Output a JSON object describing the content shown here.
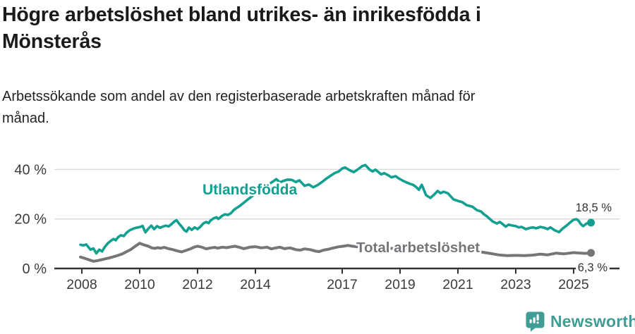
{
  "header": {
    "title_line1": "Högre arbetslöshet bland utrikes- än inrikesfödda i",
    "title_line2": "Mönsterås",
    "subtitle_line1": "Arbetssökande som andel av den registerbaserade arbetskraften månad för",
    "subtitle_line2": "månad."
  },
  "chart_data": {
    "type": "line",
    "title": "Högre arbetslöshet bland utrikes- än inrikesfödda i Mönsterås",
    "subtitle": "Arbetssökande som andel av den registerbaserade arbetskraften månad för månad.",
    "xlabel": "",
    "ylabel": "",
    "x_unit": "decimal year (monthly data)",
    "xlim": [
      2007.9,
      2026.5
    ],
    "ylim": [
      0,
      44
    ],
    "grid": "horizontal",
    "x_ticks": [
      2008,
      2010,
      2012,
      2014,
      2017,
      2019,
      2021,
      2023,
      2025
    ],
    "y_ticks": [
      {
        "value": 0,
        "label": "0 %"
      },
      {
        "value": 20,
        "label": "20 %"
      },
      {
        "value": 40,
        "label": "40 %"
      }
    ],
    "series": [
      {
        "name": "Total arbetslöshet",
        "color": "#76757A",
        "end_label": "6,3 %",
        "end_value": 6.3,
        "points": [
          [
            2007.95,
            4.6
          ],
          [
            2008.1,
            4.1
          ],
          [
            2008.25,
            3.5
          ],
          [
            2008.4,
            2.9
          ],
          [
            2008.55,
            3.2
          ],
          [
            2008.7,
            3.6
          ],
          [
            2008.85,
            4.0
          ],
          [
            2009.0,
            4.4
          ],
          [
            2009.2,
            5.1
          ],
          [
            2009.4,
            5.9
          ],
          [
            2009.55,
            6.8
          ],
          [
            2009.7,
            7.7
          ],
          [
            2009.85,
            9.0
          ],
          [
            2010.0,
            10.2
          ],
          [
            2010.15,
            9.5
          ],
          [
            2010.3,
            9.0
          ],
          [
            2010.42,
            8.3
          ],
          [
            2010.52,
            8.1
          ],
          [
            2010.62,
            8.4
          ],
          [
            2010.72,
            8.2
          ],
          [
            2010.85,
            8.5
          ],
          [
            2011.0,
            8.0
          ],
          [
            2011.15,
            7.6
          ],
          [
            2011.3,
            7.1
          ],
          [
            2011.45,
            6.7
          ],
          [
            2011.6,
            7.3
          ],
          [
            2011.75,
            7.9
          ],
          [
            2011.9,
            8.7
          ],
          [
            2012.0,
            9.0
          ],
          [
            2012.15,
            8.6
          ],
          [
            2012.3,
            7.9
          ],
          [
            2012.45,
            8.3
          ],
          [
            2012.6,
            8.5
          ],
          [
            2012.7,
            8.2
          ],
          [
            2012.85,
            8.6
          ],
          [
            2013.0,
            8.4
          ],
          [
            2013.15,
            8.7
          ],
          [
            2013.3,
            9.0
          ],
          [
            2013.45,
            8.5
          ],
          [
            2013.6,
            8.0
          ],
          [
            2013.8,
            8.6
          ],
          [
            2014.0,
            8.8
          ],
          [
            2014.2,
            8.3
          ],
          [
            2014.4,
            8.6
          ],
          [
            2014.55,
            7.9
          ],
          [
            2014.7,
            8.3
          ],
          [
            2014.85,
            8.6
          ],
          [
            2015.0,
            8.0
          ],
          [
            2015.2,
            8.3
          ],
          [
            2015.4,
            7.6
          ],
          [
            2015.55,
            7.4
          ],
          [
            2015.7,
            7.9
          ],
          [
            2015.9,
            7.6
          ],
          [
            2016.05,
            7.1
          ],
          [
            2016.2,
            6.8
          ],
          [
            2016.35,
            7.4
          ],
          [
            2016.5,
            7.7
          ],
          [
            2016.7,
            8.3
          ],
          [
            2016.9,
            8.8
          ],
          [
            2017.05,
            9.0
          ],
          [
            2017.2,
            9.3
          ],
          [
            2017.35,
            9.0
          ],
          [
            2017.5,
            8.8
          ],
          [
            2018.0,
            8.6
          ],
          [
            2018.5,
            8.2
          ],
          [
            2019.0,
            8.0
          ],
          [
            2019.5,
            7.8
          ],
          [
            2020.0,
            8.2
          ],
          [
            2020.4,
            8.8
          ],
          [
            2021.0,
            8.0
          ],
          [
            2021.5,
            7.2
          ],
          [
            2022.0,
            6.3
          ],
          [
            2022.15,
            6.0
          ],
          [
            2022.4,
            5.5
          ],
          [
            2022.7,
            5.2
          ],
          [
            2023.0,
            5.3
          ],
          [
            2023.3,
            5.2
          ],
          [
            2023.6,
            5.4
          ],
          [
            2023.85,
            5.8
          ],
          [
            2024.1,
            5.5
          ],
          [
            2024.4,
            6.2
          ],
          [
            2024.65,
            5.9
          ],
          [
            2025.0,
            6.4
          ],
          [
            2025.25,
            6.2
          ],
          [
            2025.4,
            6.1
          ],
          [
            2025.6,
            6.3
          ]
        ]
      },
      {
        "name": "Utlandsfödda",
        "color": "#12A091",
        "end_label": "18,5 %",
        "end_value": 18.5,
        "points": [
          [
            2007.95,
            9.6
          ],
          [
            2008.05,
            9.3
          ],
          [
            2008.15,
            9.7
          ],
          [
            2008.3,
            7.6
          ],
          [
            2008.4,
            8.1
          ],
          [
            2008.5,
            6.1
          ],
          [
            2008.6,
            7.6
          ],
          [
            2008.7,
            6.9
          ],
          [
            2008.8,
            8.8
          ],
          [
            2008.9,
            10.2
          ],
          [
            2009.0,
            11.2
          ],
          [
            2009.1,
            11.9
          ],
          [
            2009.17,
            11.4
          ],
          [
            2009.25,
            12.6
          ],
          [
            2009.35,
            13.4
          ],
          [
            2009.45,
            13.1
          ],
          [
            2009.55,
            14.5
          ],
          [
            2009.65,
            15.4
          ],
          [
            2009.8,
            16.2
          ],
          [
            2009.9,
            16.5
          ],
          [
            2010.0,
            16.7
          ],
          [
            2010.1,
            17.2
          ],
          [
            2010.2,
            14.6
          ],
          [
            2010.3,
            16.1
          ],
          [
            2010.4,
            17.3
          ],
          [
            2010.5,
            15.9
          ],
          [
            2010.6,
            17.1
          ],
          [
            2010.7,
            16.4
          ],
          [
            2010.8,
            16.9
          ],
          [
            2010.9,
            17.3
          ],
          [
            2011.0,
            17.0
          ],
          [
            2011.1,
            17.9
          ],
          [
            2011.2,
            19.0
          ],
          [
            2011.27,
            19.5
          ],
          [
            2011.35,
            18.3
          ],
          [
            2011.45,
            16.9
          ],
          [
            2011.55,
            15.4
          ],
          [
            2011.62,
            14.9
          ],
          [
            2011.7,
            16.5
          ],
          [
            2011.8,
            15.6
          ],
          [
            2011.9,
            16.6
          ],
          [
            2012.0,
            15.9
          ],
          [
            2012.1,
            16.9
          ],
          [
            2012.2,
            18.2
          ],
          [
            2012.3,
            18.8
          ],
          [
            2012.38,
            18.3
          ],
          [
            2012.45,
            19.4
          ],
          [
            2012.55,
            20.2
          ],
          [
            2012.65,
            20.7
          ],
          [
            2012.72,
            20.0
          ],
          [
            2012.85,
            21.3
          ],
          [
            2012.95,
            21.9
          ],
          [
            2013.05,
            21.6
          ],
          [
            2013.15,
            22.3
          ],
          [
            2013.25,
            23.6
          ],
          [
            2013.32,
            24.2
          ],
          [
            2013.45,
            25.2
          ],
          [
            2013.6,
            26.6
          ],
          [
            2013.75,
            28.0
          ],
          [
            2013.9,
            29.3
          ],
          [
            2014.05,
            30.7
          ],
          [
            2014.2,
            32.0
          ],
          [
            2014.35,
            33.2
          ],
          [
            2014.5,
            34.3
          ],
          [
            2014.63,
            35.3
          ],
          [
            2014.72,
            36.1
          ],
          [
            2014.85,
            34.8
          ],
          [
            2014.95,
            35.3
          ],
          [
            2015.1,
            35.9
          ],
          [
            2015.25,
            35.8
          ],
          [
            2015.4,
            34.9
          ],
          [
            2015.52,
            35.6
          ],
          [
            2015.7,
            33.4
          ],
          [
            2015.85,
            33.9
          ],
          [
            2016.0,
            32.8
          ],
          [
            2016.15,
            33.7
          ],
          [
            2016.3,
            34.9
          ],
          [
            2016.45,
            36.3
          ],
          [
            2016.6,
            37.5
          ],
          [
            2016.75,
            38.6
          ],
          [
            2016.88,
            39.2
          ],
          [
            2017.0,
            40.4
          ],
          [
            2017.1,
            40.8
          ],
          [
            2017.25,
            39.7
          ],
          [
            2017.4,
            38.9
          ],
          [
            2017.55,
            40.1
          ],
          [
            2017.7,
            41.4
          ],
          [
            2017.8,
            41.8
          ],
          [
            2017.95,
            39.9
          ],
          [
            2018.05,
            39.2
          ],
          [
            2018.15,
            39.9
          ],
          [
            2018.35,
            38.0
          ],
          [
            2018.45,
            38.5
          ],
          [
            2018.6,
            37.6
          ],
          [
            2018.7,
            36.8
          ],
          [
            2018.85,
            37.3
          ],
          [
            2018.95,
            36.4
          ],
          [
            2019.1,
            35.4
          ],
          [
            2019.2,
            34.9
          ],
          [
            2019.35,
            34.2
          ],
          [
            2019.45,
            33.8
          ],
          [
            2019.55,
            33.0
          ],
          [
            2019.65,
            31.8
          ],
          [
            2019.75,
            33.8
          ],
          [
            2019.9,
            29.6
          ],
          [
            2020.05,
            28.5
          ],
          [
            2020.2,
            30.1
          ],
          [
            2020.3,
            31.3
          ],
          [
            2020.4,
            30.4
          ],
          [
            2020.5,
            31.0
          ],
          [
            2020.65,
            30.4
          ],
          [
            2020.85,
            27.9
          ],
          [
            2021.0,
            27.3
          ],
          [
            2021.15,
            26.8
          ],
          [
            2021.3,
            25.6
          ],
          [
            2021.5,
            25.0
          ],
          [
            2021.65,
            23.6
          ],
          [
            2021.8,
            23.0
          ],
          [
            2021.9,
            21.9
          ],
          [
            2022.0,
            21.1
          ],
          [
            2022.2,
            19.0
          ],
          [
            2022.35,
            18.2
          ],
          [
            2022.45,
            18.8
          ],
          [
            2022.55,
            17.9
          ],
          [
            2022.65,
            16.9
          ],
          [
            2022.75,
            17.7
          ],
          [
            2022.9,
            17.3
          ],
          [
            2023.0,
            17.1
          ],
          [
            2023.1,
            16.6
          ],
          [
            2023.2,
            16.8
          ],
          [
            2023.35,
            15.9
          ],
          [
            2023.5,
            16.4
          ],
          [
            2023.6,
            16.6
          ],
          [
            2023.7,
            16.2
          ],
          [
            2023.85,
            16.8
          ],
          [
            2024.0,
            16.4
          ],
          [
            2024.1,
            15.9
          ],
          [
            2024.2,
            16.6
          ],
          [
            2024.35,
            15.4
          ],
          [
            2024.5,
            14.7
          ],
          [
            2024.6,
            15.9
          ],
          [
            2024.75,
            17.3
          ],
          [
            2024.9,
            18.8
          ],
          [
            2025.0,
            19.7
          ],
          [
            2025.1,
            19.9
          ],
          [
            2025.17,
            19.3
          ],
          [
            2025.25,
            17.9
          ],
          [
            2025.33,
            17.1
          ],
          [
            2025.45,
            18.2
          ],
          [
            2025.6,
            18.5
          ]
        ]
      }
    ]
  },
  "colors": {
    "teal_line": "#12A091",
    "gray_line": "#76757A",
    "gridline": "#DADADA",
    "axis": "#333333",
    "tick_label": "#3C3C3C",
    "value_label": "#333333",
    "title": "#1a1a18",
    "brand": "#3F9D95"
  },
  "footer": {
    "brand": "Newsworthy"
  }
}
